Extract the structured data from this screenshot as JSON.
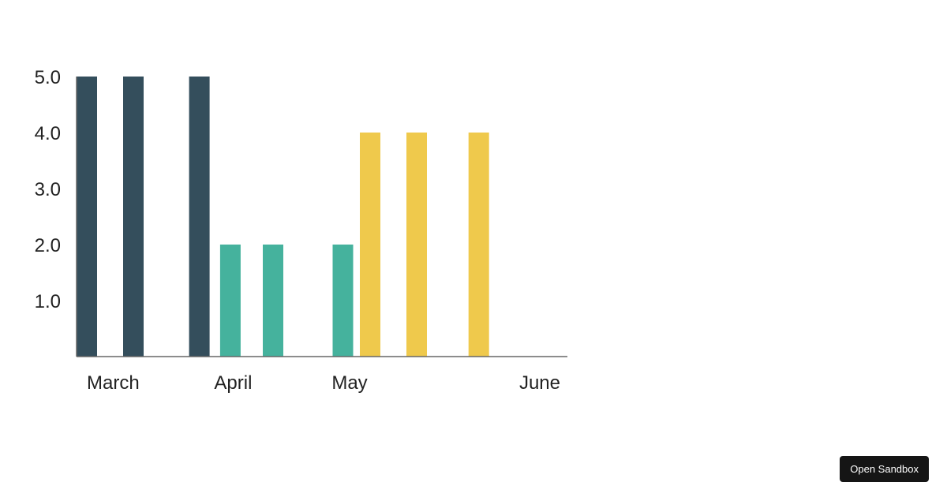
{
  "sandbox": {
    "label": "Open Sandbox"
  },
  "chart_data": {
    "type": "bar",
    "ylim": [
      0,
      5
    ],
    "y_ticks": [
      "1.0",
      "2.0",
      "3.0",
      "4.0",
      "5.0"
    ],
    "x_ticks": [
      "March",
      "April",
      "May",
      "June"
    ],
    "x_domain": [
      "2021-03-01",
      "2021-06-30"
    ],
    "grid": false,
    "series": [
      {
        "color": "#344e5c",
        "points": [
          {
            "x": "2021-03-01",
            "y": 5
          },
          {
            "x": "2021-03-13",
            "y": 5
          },
          {
            "x": "2021-03-30",
            "y": 5
          }
        ]
      },
      {
        "color": "#45b29d",
        "points": [
          {
            "x": "2021-04-07",
            "y": 2
          },
          {
            "x": "2021-04-18",
            "y": 2
          },
          {
            "x": "2021-05-06",
            "y": 2
          }
        ]
      },
      {
        "color": "#efc94c",
        "points": [
          {
            "x": "2021-05-13",
            "y": 4
          },
          {
            "x": "2021-05-25",
            "y": 4
          },
          {
            "x": "2021-06-10",
            "y": 4
          }
        ]
      }
    ]
  }
}
